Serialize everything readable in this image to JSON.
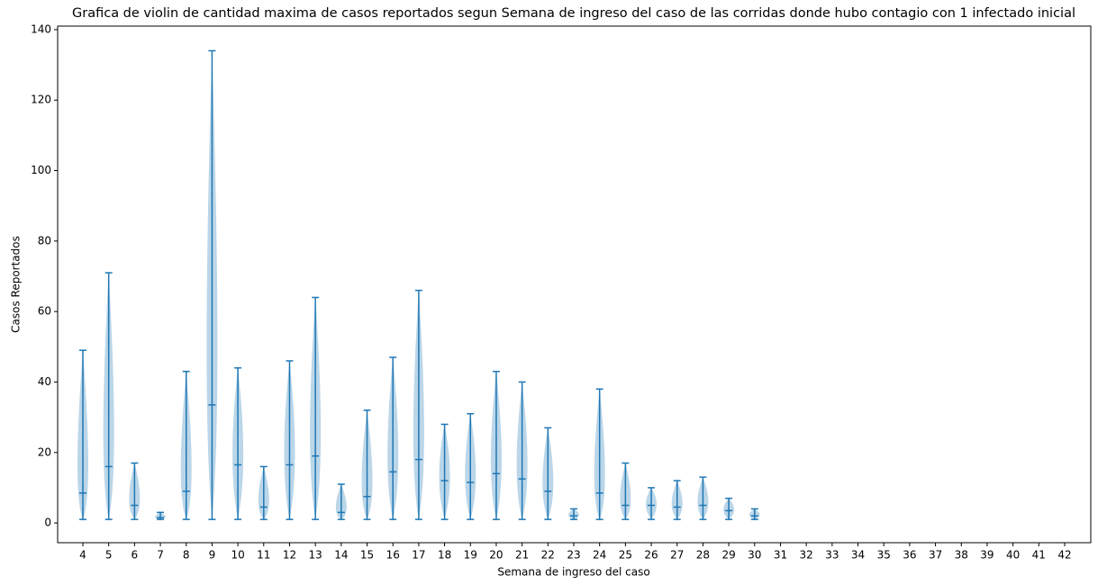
{
  "chart_data": {
    "type": "violin",
    "title": "Grafica de violin de cantidad maxima de casos reportados segun Semana de ingreso del caso de las corridas donde hubo contagio con 1 infectado inicial",
    "xlabel": "Semana de ingreso del caso",
    "ylabel": "Casos Reportados",
    "categories": [
      "4",
      "5",
      "6",
      "7",
      "8",
      "9",
      "10",
      "11",
      "12",
      "13",
      "14",
      "15",
      "16",
      "17",
      "18",
      "19",
      "20",
      "21",
      "22",
      "23",
      "24",
      "25",
      "26",
      "27",
      "28",
      "29",
      "30",
      "31",
      "32",
      "33",
      "34",
      "35",
      "36",
      "37",
      "38",
      "39",
      "40",
      "41",
      "42"
    ],
    "min": [
      1,
      1,
      1,
      1,
      1,
      1,
      1,
      1,
      1,
      1,
      1,
      1,
      1,
      1,
      1,
      1,
      1,
      1,
      1,
      1,
      1,
      1,
      1,
      1,
      1,
      1,
      1,
      null,
      null,
      null,
      null,
      null,
      null,
      null,
      null,
      null,
      null,
      null,
      null
    ],
    "mean": [
      8.5,
      16,
      5,
      1.5,
      9,
      33.5,
      16.5,
      4.5,
      16.5,
      19,
      3,
      7.5,
      14.5,
      18,
      12,
      11.5,
      14,
      12.5,
      9,
      2,
      8.5,
      5,
      5,
      4.5,
      5,
      3.5,
      2,
      null,
      null,
      null,
      null,
      null,
      null,
      null,
      null,
      null,
      null,
      null,
      null
    ],
    "max": [
      49,
      71,
      17,
      3,
      43,
      134,
      44,
      16,
      46,
      64,
      11,
      32,
      47,
      66,
      28,
      31,
      43,
      40,
      27,
      4,
      38,
      17,
      10,
      12,
      13,
      7,
      4,
      null,
      null,
      null,
      null,
      null,
      null,
      null,
      null,
      null,
      null,
      null,
      null
    ],
    "color": "#1f77b4",
    "ylim": [
      -5.6,
      141
    ],
    "yticks": [
      0,
      20,
      40,
      60,
      80,
      100,
      120,
      140
    ]
  }
}
